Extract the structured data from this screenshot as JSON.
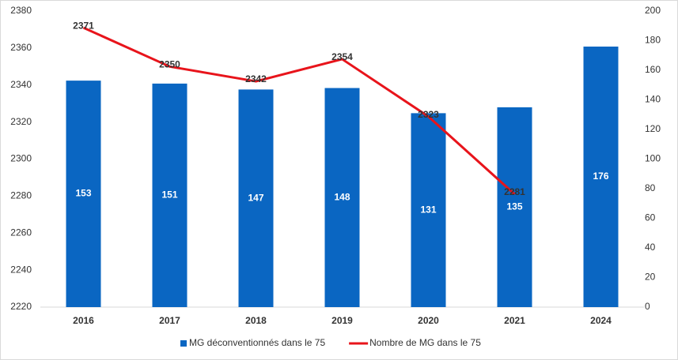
{
  "chart_data": {
    "type": "bar-line",
    "categories": [
      "2016",
      "2017",
      "2018",
      "2019",
      "2020",
      "2021",
      "2024"
    ],
    "series": [
      {
        "name": "MG déconventionnés dans le 75",
        "type": "bar",
        "axis": "y2",
        "color": "#0a66c2",
        "values": [
          153,
          151,
          147,
          148,
          131,
          135,
          176
        ]
      },
      {
        "name": "Nombre de MG dans le 75",
        "type": "line",
        "axis": "y",
        "color": "#e8141b",
        "values": [
          2371,
          2350,
          2342,
          2354,
          2323,
          2281,
          null
        ]
      }
    ],
    "ylim": [
      2220,
      2380
    ],
    "yticks": [
      2220,
      2240,
      2260,
      2280,
      2300,
      2320,
      2340,
      2360,
      2380
    ],
    "y2lim": [
      0,
      200
    ],
    "y2ticks": [
      0,
      20,
      40,
      60,
      80,
      100,
      120,
      140,
      160,
      180,
      200
    ],
    "grid": false,
    "legend": "bottom"
  }
}
